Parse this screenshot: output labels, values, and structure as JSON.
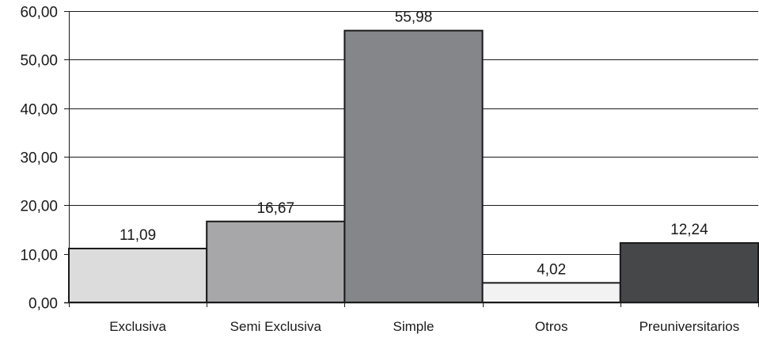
{
  "chart_data": {
    "type": "bar",
    "categories": [
      "Exclusiva",
      "Semi Exclusiva",
      "Simple",
      "Otros",
      "Preuniversitarios"
    ],
    "values": [
      11.09,
      16.67,
      55.98,
      4.02,
      12.24
    ],
    "value_labels": [
      "11,09",
      "16,67",
      "55,98",
      "4,02",
      "12,24"
    ],
    "bar_colors": [
      "#dcdcdd",
      "#a7a7aa",
      "#858689",
      "#f2f2f3",
      "#464749"
    ],
    "ylim": [
      0,
      60
    ],
    "yticks": [
      0,
      10,
      20,
      30,
      40,
      50,
      60
    ],
    "ytick_labels": [
      "0,00",
      "10,00",
      "20,00",
      "30,00",
      "40,00",
      "50,00",
      "60,00"
    ],
    "grid": true,
    "title": "",
    "xlabel": "",
    "ylabel": ""
  }
}
